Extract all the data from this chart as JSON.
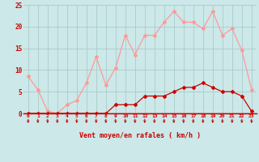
{
  "hours": [
    0,
    1,
    2,
    3,
    4,
    5,
    6,
    7,
    8,
    9,
    10,
    11,
    12,
    13,
    14,
    15,
    16,
    17,
    18,
    19,
    20,
    21,
    22,
    23
  ],
  "gust": [
    8.5,
    5.5,
    0.5,
    0,
    2,
    3,
    7,
    13,
    6.5,
    10.5,
    18,
    13.5,
    18,
    18,
    21,
    23.5,
    21,
    21,
    19.5,
    23.5,
    18,
    19.5,
    14.5,
    5.5
  ],
  "avg": [
    0,
    0,
    0,
    0,
    0,
    0,
    0,
    0,
    0,
    2,
    2,
    2,
    4,
    4,
    4,
    5,
    6,
    6,
    7,
    6,
    5,
    5,
    4,
    0.5
  ],
  "background_color": "#cce8e8",
  "grid_color": "#aacccc",
  "line_color_gust": "#ff9999",
  "line_color_avg": "#cc0000",
  "xlabel": "Vent moyen/en rafales ( km/h )",
  "ylim": [
    0,
    25
  ],
  "yticks": [
    0,
    5,
    10,
    15,
    20,
    25
  ]
}
